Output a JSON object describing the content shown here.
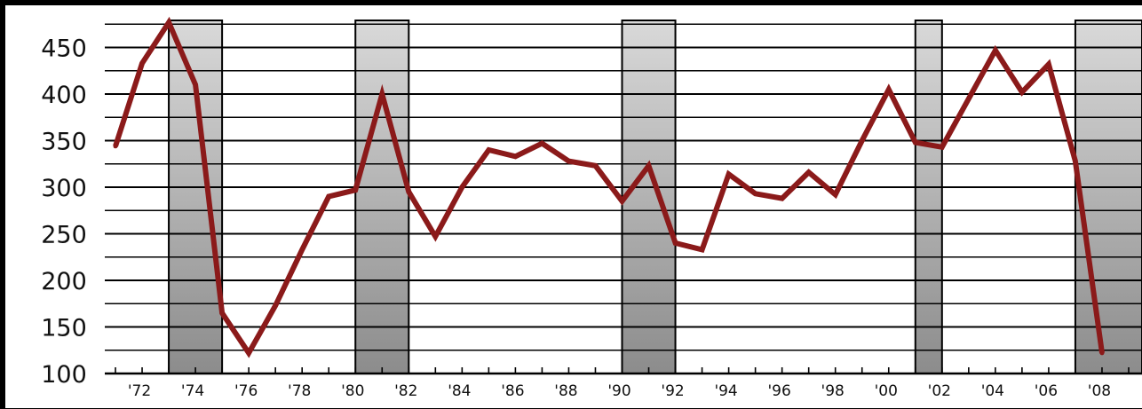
{
  "chart_data": {
    "type": "line",
    "title": "",
    "xlabel": "",
    "ylabel": "",
    "ylim": [
      100,
      480
    ],
    "xlim": [
      1970.6,
      2009.5
    ],
    "y_ticks": [
      100,
      150,
      200,
      250,
      300,
      350,
      400,
      450
    ],
    "y_tick_labels": [
      "100",
      "150",
      "200",
      "250",
      "300",
      "350",
      "400",
      "450"
    ],
    "x_ticks": [
      1972,
      1974,
      1976,
      1978,
      1980,
      1982,
      1984,
      1986,
      1988,
      1990,
      1992,
      1994,
      1996,
      1998,
      2000,
      2002,
      2004,
      2006,
      2008
    ],
    "x_tick_labels": [
      "'72",
      "'74",
      "'76",
      "'78",
      "'80",
      "'82",
      "'84",
      "'86",
      "'88",
      "'90",
      "'92",
      "'94",
      "'96",
      "'98",
      "'00",
      "'02",
      "'04",
      "'06",
      "'08"
    ],
    "grid": true,
    "legend": "none",
    "shaded_periods": [
      {
        "start": 1973.0,
        "end": 1975.0
      },
      {
        "start": 1980.0,
        "end": 1982.0
      },
      {
        "start": 1990.0,
        "end": 1992.0
      },
      {
        "start": 2001.0,
        "end": 2002.0
      },
      {
        "start": 2007.0,
        "end": 2009.5
      }
    ],
    "series": [
      {
        "color": "#8b1a1a",
        "x": [
          1971,
          1972,
          1973,
          1974,
          1975,
          1976,
          1977,
          1978,
          1979,
          1980,
          1981,
          1982,
          1983,
          1984,
          1985,
          1986,
          1987,
          1988,
          1989,
          1990,
          1991,
          1992,
          1993,
          1994,
          1995,
          1996,
          1997,
          1998,
          1999,
          2000,
          2001,
          2002,
          2003,
          2004,
          2005,
          2006,
          2007,
          2008
        ],
        "values": [
          344,
          433,
          477,
          410,
          165,
          122,
          173,
          233,
          290,
          297,
          400,
          295,
          247,
          300,
          340,
          333,
          347,
          328,
          323,
          285,
          323,
          240,
          233,
          314,
          293,
          288,
          316,
          292,
          350,
          405,
          348,
          343,
          395,
          447,
          402,
          432,
          328,
          122
        ]
      }
    ]
  }
}
